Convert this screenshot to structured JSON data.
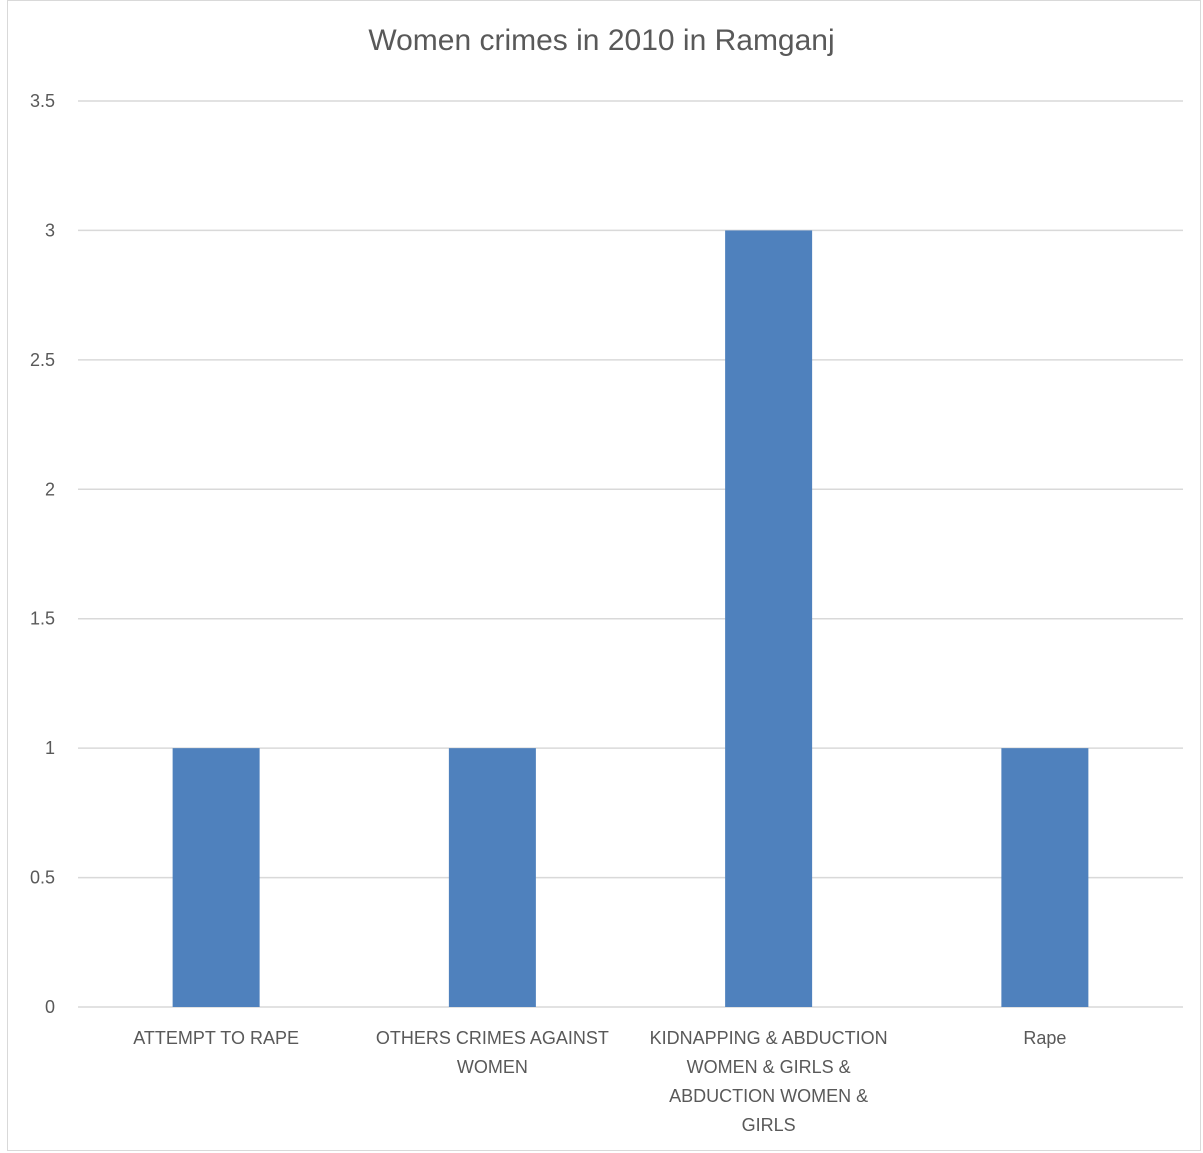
{
  "chart_data": {
    "type": "bar",
    "title": "Women crimes in 2010 in Ramganj",
    "xlabel": "",
    "ylabel": "",
    "categories": [
      "ATTEMPT TO RAPE",
      "OTHERS CRIMES AGAINST WOMEN",
      "KIDNAPPING & ABDUCTION WOMEN & GIRLS & ABDUCTION WOMEN & GIRLS",
      "Rape"
    ],
    "category_label_lines": [
      [
        "ATTEMPT TO RAPE"
      ],
      [
        "OTHERS CRIMES AGAINST",
        "WOMEN"
      ],
      [
        "KIDNAPPING & ABDUCTION",
        "WOMEN & GIRLS &",
        "ABDUCTION WOMEN &",
        "GIRLS"
      ],
      [
        "Rape"
      ]
    ],
    "values": [
      1,
      1,
      3,
      1
    ],
    "ylim": [
      0,
      3.5
    ],
    "yticks": [
      "0",
      "0.5",
      "1",
      "1.5",
      "2",
      "2.5",
      "3",
      "3.5"
    ],
    "grid": true,
    "bar_color": "#4f81bd",
    "grid_color": "#d9d9d9"
  }
}
